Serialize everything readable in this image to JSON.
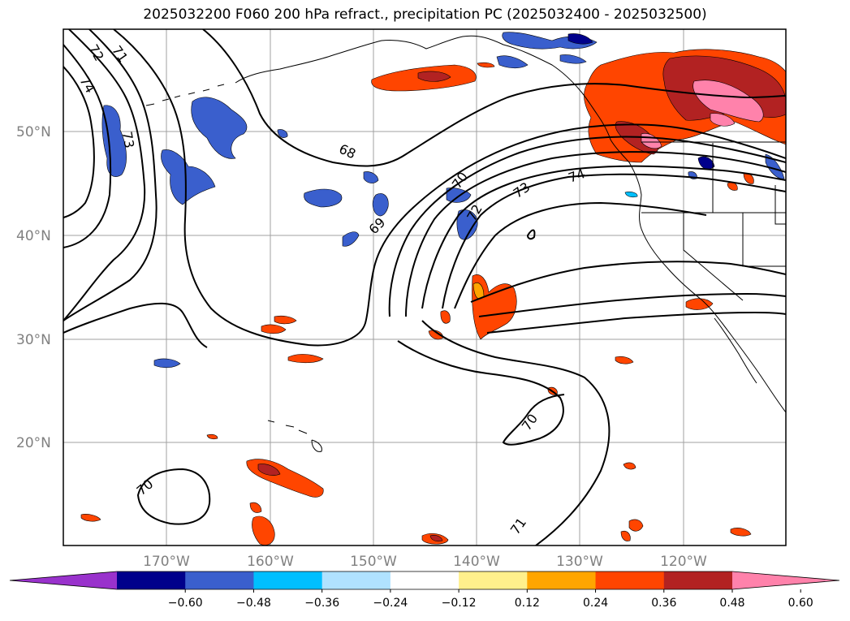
{
  "title": "2025032200 F060 200 hPa refract., precipitation PC (2025032400 - 2025032500)",
  "map": {
    "lat_labels": [
      "50°N",
      "40°N",
      "30°N",
      "20°N"
    ],
    "lon_labels": [
      "170°W",
      "160°W",
      "150°W",
      "140°W",
      "130°W",
      "120°W"
    ],
    "contour_labels": [
      "72",
      "71",
      "74",
      "73",
      "68",
      "69",
      "70",
      "72",
      "73",
      "74",
      "70",
      "70",
      "71"
    ],
    "colors": {
      "neg_strong": "#9932cc",
      "neg_navy": "#00008b",
      "neg_royal": "#3a5fcd",
      "neg_sky": "#00bfff",
      "neg_light": "#b0e2ff",
      "pos_yellow": "#fff08c",
      "pos_orange": "#ffa500",
      "pos_red": "#ff4500",
      "pos_brick": "#b22222",
      "pos_pink": "#ff82ab",
      "grid": "#a0a0a0"
    }
  },
  "colorbar": {
    "ticks": [
      "−0.60",
      "−0.48",
      "−0.36",
      "−0.24",
      "−0.12",
      "0.12",
      "0.24",
      "0.36",
      "0.48",
      "0.60"
    ],
    "segment_colors": [
      "#9932cc",
      "#00008b",
      "#3a5fcd",
      "#00bfff",
      "#b0e2ff",
      "#ffffff",
      "#fff08c",
      "#ffa500",
      "#ff4500",
      "#b22222",
      "#ff82ab"
    ]
  }
}
